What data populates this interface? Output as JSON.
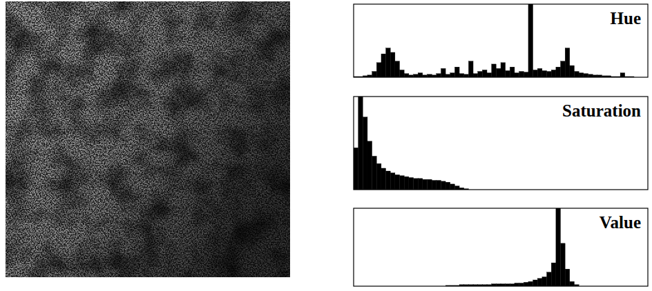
{
  "chart_data": [
    {
      "type": "histogram",
      "title": "Hue",
      "color": "#000000",
      "xlim": [
        0,
        256
      ],
      "ylim": [
        0,
        100
      ],
      "tick_labels": false,
      "bins": [
        0,
        4,
        8,
        12,
        16,
        20,
        24,
        28,
        32,
        36,
        40,
        44,
        48,
        52,
        56,
        60,
        64,
        68,
        72,
        76,
        80,
        84,
        88,
        92,
        96,
        100,
        104,
        108,
        112,
        116,
        120,
        124,
        128,
        132,
        136,
        140,
        144,
        148,
        152,
        156,
        160,
        164,
        168,
        172,
        176,
        180,
        184,
        188,
        192,
        196,
        200,
        204,
        208,
        212,
        216,
        220,
        224,
        228,
        232,
        236,
        240,
        244,
        248,
        252,
        256
      ],
      "values": [
        1,
        1,
        2,
        3,
        8,
        20,
        32,
        40,
        34,
        22,
        10,
        5,
        3,
        4,
        6,
        3,
        4,
        3,
        5,
        12,
        4,
        6,
        14,
        5,
        4,
        22,
        5,
        8,
        10,
        6,
        18,
        12,
        20,
        9,
        14,
        6,
        8,
        7,
        100,
        10,
        12,
        9,
        8,
        10,
        14,
        22,
        40,
        16,
        8,
        6,
        5,
        4,
        3,
        3,
        2,
        2,
        1,
        1,
        6,
        1,
        1,
        0,
        0,
        0
      ]
    },
    {
      "type": "histogram",
      "title": "Saturation",
      "color": "#000000",
      "xlim": [
        0,
        256
      ],
      "ylim": [
        0,
        100
      ],
      "tick_labels": false,
      "bins": [
        0,
        4,
        8,
        12,
        16,
        20,
        24,
        28,
        32,
        36,
        40,
        44,
        48,
        52,
        56,
        60,
        64,
        68,
        72,
        76,
        80,
        84,
        88,
        92,
        96,
        100,
        104,
        108,
        112,
        116,
        120,
        124,
        128,
        132,
        136,
        140,
        144,
        148,
        152,
        156,
        160,
        164,
        168,
        172,
        176,
        180,
        184,
        188,
        192,
        196,
        200,
        204,
        208,
        212,
        216,
        220,
        224,
        228,
        232,
        236,
        240,
        244,
        248,
        252,
        256
      ],
      "values": [
        45,
        100,
        78,
        52,
        36,
        28,
        23,
        20,
        18,
        16,
        15,
        14,
        13,
        12,
        12,
        11,
        11,
        10,
        10,
        9,
        8,
        6,
        4,
        2,
        1,
        0,
        0,
        0,
        0,
        0,
        0,
        0,
        0,
        0,
        0,
        0,
        0,
        0,
        0,
        0,
        0,
        0,
        0,
        0,
        0,
        0,
        0,
        0,
        0,
        0,
        0,
        0,
        0,
        0,
        0,
        0,
        0,
        0,
        0,
        0,
        0,
        0,
        0,
        0
      ]
    },
    {
      "type": "histogram",
      "title": "Value",
      "color": "#000000",
      "xlim": [
        0,
        256
      ],
      "ylim": [
        0,
        100
      ],
      "tick_labels": false,
      "bins": [
        0,
        4,
        8,
        12,
        16,
        20,
        24,
        28,
        32,
        36,
        40,
        44,
        48,
        52,
        56,
        60,
        64,
        68,
        72,
        76,
        80,
        84,
        88,
        92,
        96,
        100,
        104,
        108,
        112,
        116,
        120,
        124,
        128,
        132,
        136,
        140,
        144,
        148,
        152,
        156,
        160,
        164,
        168,
        172,
        176,
        180,
        184,
        188,
        192,
        196,
        200,
        204,
        208,
        212,
        216,
        220,
        224,
        228,
        232,
        236,
        240,
        244,
        248,
        252,
        256
      ],
      "values": [
        0,
        0,
        0,
        0,
        0,
        0,
        0,
        0,
        0,
        0,
        0,
        0,
        0,
        0,
        0,
        0,
        0,
        0,
        0,
        0,
        1,
        1,
        1,
        2,
        2,
        2,
        2,
        2,
        2,
        2,
        3,
        3,
        3,
        3,
        3,
        4,
        4,
        5,
        6,
        8,
        10,
        12,
        18,
        30,
        100,
        55,
        22,
        6,
        2,
        0,
        0,
        0,
        0,
        0,
        0,
        0,
        0,
        0,
        0,
        0,
        0,
        0,
        0,
        0
      ]
    }
  ]
}
